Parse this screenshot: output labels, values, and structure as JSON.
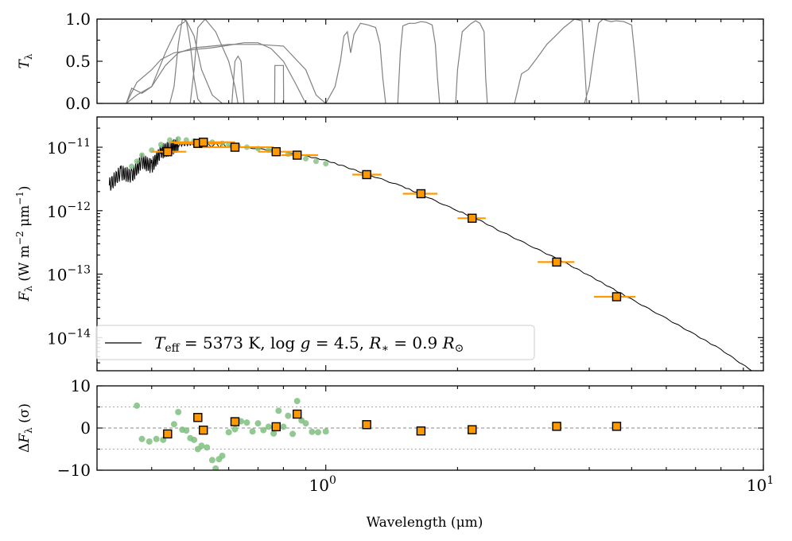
{
  "chart_data": [
    {
      "type": "line",
      "panel": "filter transmission",
      "ylabel_symbol": "T",
      "ylabel_sub": "λ",
      "xscale": "log",
      "xlim": [
        0.3,
        10
      ],
      "ylim": [
        0,
        1
      ],
      "yticks": [
        "0.0",
        "0.5",
        "1.0"
      ],
      "color": "#808080",
      "series": [
        {
          "x": [
            0.35,
            0.36,
            0.38,
            0.4,
            0.43,
            0.46,
            0.48,
            0.5,
            0.52,
            0.55,
            0.58
          ],
          "values": [
            0,
            0.18,
            0.12,
            0.2,
            0.6,
            0.92,
            0.98,
            0.8,
            0.4,
            0.1,
            0
          ]
        },
        {
          "x": [
            0.35,
            0.37,
            0.4,
            0.42,
            0.45,
            0.5,
            0.55,
            0.6,
            0.65,
            0.7,
            0.75,
            0.8,
            0.85,
            0.9
          ],
          "values": [
            0,
            0.25,
            0.4,
            0.52,
            0.6,
            0.64,
            0.66,
            0.69,
            0.72,
            0.72,
            0.65,
            0.5,
            0.25,
            0
          ]
        },
        {
          "x": [
            0.35,
            0.37,
            0.4,
            0.43,
            0.46,
            0.5,
            0.55,
            0.6,
            0.7,
            0.8,
            0.9,
            0.95,
            1.0
          ],
          "values": [
            0,
            0.1,
            0.2,
            0.45,
            0.6,
            0.66,
            0.68,
            0.7,
            0.7,
            0.68,
            0.4,
            0.1,
            0
          ]
        },
        {
          "x": [
            0.44,
            0.45,
            0.46,
            0.47,
            0.48,
            0.49,
            0.5,
            0.51,
            0.52
          ],
          "values": [
            0,
            0.2,
            0.7,
            1.0,
            0.98,
            0.7,
            0.3,
            0.05,
            0
          ]
        },
        {
          "x": [
            0.49,
            0.5,
            0.51,
            0.53,
            0.56,
            0.6,
            0.62,
            0.63
          ],
          "values": [
            0,
            0.4,
            0.9,
            1.0,
            0.85,
            0.5,
            0.2,
            0
          ]
        },
        {
          "x": [
            0.61,
            0.62,
            0.63,
            0.64,
            0.65
          ],
          "values": [
            0,
            0.5,
            0.56,
            0.5,
            0
          ]
        },
        {
          "x": [
            0.764,
            0.765,
            0.8,
            0.8,
            0.801
          ],
          "values": [
            0,
            0.45,
            0.45,
            0.45,
            0
          ]
        },
        {
          "x": [
            1.0,
            1.05,
            1.08,
            1.1,
            1.12,
            1.14,
            1.16,
            1.2,
            1.25,
            1.3,
            1.33,
            1.35,
            1.37
          ],
          "values": [
            0,
            0.2,
            0.5,
            0.8,
            0.85,
            0.6,
            0.82,
            0.95,
            0.93,
            0.9,
            0.7,
            0.3,
            0
          ]
        },
        {
          "x": [
            1.46,
            1.48,
            1.5,
            1.55,
            1.6,
            1.65,
            1.7,
            1.75,
            1.78,
            1.8,
            1.82
          ],
          "values": [
            0,
            0.6,
            0.92,
            0.95,
            0.95,
            0.97,
            0.96,
            0.93,
            0.7,
            0.3,
            0
          ]
        },
        {
          "x": [
            1.98,
            2.0,
            2.05,
            2.1,
            2.15,
            2.2,
            2.25,
            2.3,
            2.32,
            2.34
          ],
          "values": [
            0,
            0.4,
            0.85,
            0.9,
            0.95,
            0.98,
            0.95,
            0.85,
            0.3,
            0
          ]
        },
        {
          "x": [
            2.7,
            2.8,
            2.9,
            3.0,
            3.1,
            3.2,
            3.35,
            3.5,
            3.7,
            3.85,
            3.9,
            3.95
          ],
          "values": [
            0,
            0.35,
            0.4,
            0.5,
            0.6,
            0.7,
            0.8,
            0.9,
            1.0,
            0.98,
            0.5,
            0
          ]
        },
        {
          "x": [
            3.9,
            4.0,
            4.1,
            4.2,
            4.3,
            4.4,
            4.5,
            4.6,
            4.8,
            5.0,
            5.1,
            5.2
          ],
          "values": [
            0,
            0.2,
            0.6,
            0.95,
            1.0,
            0.98,
            0.97,
            0.98,
            0.97,
            0.93,
            0.5,
            0
          ]
        }
      ]
    },
    {
      "type": "scatter",
      "panel": "spectral energy distribution",
      "ylabel_symbol": "F",
      "ylabel_sub": "λ",
      "ylabel_units": "(W m",
      "ylabel_exp1": "−2",
      "ylabel_mid": " μm",
      "ylabel_exp2": "−1",
      "ylabel_close": ")",
      "xscale": "log",
      "yscale": "log",
      "xlim": [
        0.3,
        10
      ],
      "ylim": [
        3e-15,
        3e-11
      ],
      "yticks": [
        {
          "base": "10",
          "exp": "−11"
        },
        {
          "base": "10",
          "exp": "−12"
        },
        {
          "base": "10",
          "exp": "−13"
        },
        {
          "base": "10",
          "exp": "−14"
        }
      ],
      "legend": {
        "position": "lower-left",
        "label": "T_eff = 5373 K, log g = 4.5, R_* = 0.9 R_⊙",
        "parts": {
          "teff_sym": "T",
          "teff_sub": "eff",
          "teff_val": " = 5373 K, log ",
          "g_sym": "g",
          "g_val": " = 4.5, ",
          "r_sym": "R",
          "r_sub": "∗",
          "r_val": " = 0.9 ",
          "rsun_sym": "R",
          "rsun_sub": "⊙"
        }
      },
      "model_line": {
        "color": "#000000",
        "x": [
          0.32,
          0.34,
          0.36,
          0.38,
          0.4,
          0.42,
          0.44,
          0.46,
          0.5,
          0.55,
          0.6,
          0.7,
          0.8,
          0.9,
          1.0,
          1.1,
          1.25,
          1.5,
          1.65,
          2.0,
          2.2,
          2.5,
          3.0,
          3.5,
          4.0,
          4.5,
          5.0,
          6.0,
          7.0,
          8.0,
          9.4
        ],
        "values": [
          2.5e-12,
          4e-12,
          3.5e-12,
          6e-12,
          5e-12,
          8.5e-12,
          9.5e-12,
          1.1e-11,
          1.15e-11,
          1.1e-11,
          1.05e-11,
          9.5e-12,
          8.5e-12,
          7.3e-12,
          6.2e-12,
          5e-12,
          3.7e-12,
          2.4e-12,
          1.8e-12,
          1e-12,
          7.6e-13,
          4.8e-13,
          2.6e-13,
          1.55e-13,
          9.5e-14,
          6e-14,
          4e-14,
          2e-14,
          1.1e-14,
          6.5e-15,
          3e-15
        ]
      },
      "spectrum_points": {
        "color": "#7fbf7f",
        "x": [
          0.36,
          0.37,
          0.38,
          0.4,
          0.42,
          0.44,
          0.46,
          0.48,
          0.5,
          0.52,
          0.55,
          0.58,
          0.6,
          0.63,
          0.66,
          0.7,
          0.74,
          0.78,
          0.82,
          0.86,
          0.9,
          0.95,
          1.0
        ],
        "values": [
          5e-12,
          6e-12,
          7.5e-12,
          9e-12,
          1.1e-11,
          1.3e-11,
          1.35e-11,
          1.3e-11,
          1.25e-11,
          1.22e-11,
          1.2e-11,
          1.15e-11,
          1.1e-11,
          1.05e-11,
          1e-11,
          9.5e-12,
          9e-12,
          8.3e-12,
          7.8e-12,
          7.2e-12,
          6.6e-12,
          6e-12,
          5.5e-12
        ]
      },
      "photometry": {
        "marker_color": "#ff9900",
        "edge_color": "#000000",
        "x": [
          0.435,
          0.51,
          0.525,
          0.62,
          0.77,
          0.86,
          1.24,
          1.65,
          2.16,
          3.37,
          4.62
        ],
        "values": [
          8.5e-12,
          1.15e-11,
          1.2e-11,
          1e-11,
          8.5e-12,
          7.5e-12,
          3.7e-12,
          1.85e-12,
          7.6e-13,
          1.55e-13,
          4.4e-14
        ],
        "xerr_low": [
          0.4,
          0.45,
          0.44,
          0.5,
          0.7,
          0.79,
          1.15,
          1.5,
          2.0,
          3.05,
          4.1
        ],
        "xerr_high": [
          0.48,
          0.58,
          0.62,
          0.76,
          0.87,
          0.96,
          1.34,
          1.8,
          2.32,
          3.7,
          5.1
        ]
      }
    },
    {
      "type": "scatter",
      "panel": "residuals",
      "ylabel_delta": "Δ",
      "ylabel_symbol": "F",
      "ylabel_sub": "λ",
      "ylabel_units": " (σ)",
      "xscale": "log",
      "xlim": [
        0.3,
        10
      ],
      "ylim": [
        -10,
        10
      ],
      "yticks": [
        "−10",
        "0",
        "10"
      ],
      "xlabel": "Wavelength (μm)",
      "xticks": [
        {
          "base": "10",
          "exp": "0",
          "value": 1
        },
        {
          "base": "10",
          "exp": "1",
          "value": 10
        }
      ],
      "reference_lines": [
        0,
        5,
        -5
      ],
      "spectrum_residuals": {
        "color": "#7fbf7f",
        "x": [
          0.37,
          0.38,
          0.395,
          0.41,
          0.425,
          0.435,
          0.45,
          0.46,
          0.47,
          0.48,
          0.49,
          0.5,
          0.51,
          0.52,
          0.535,
          0.55,
          0.56,
          0.57,
          0.58,
          0.6,
          0.62,
          0.64,
          0.66,
          0.68,
          0.7,
          0.72,
          0.74,
          0.76,
          0.78,
          0.8,
          0.82,
          0.84,
          0.86,
          0.88,
          0.9,
          0.93,
          0.96,
          1.0
        ],
        "values": [
          5.3,
          -2.6,
          -3.2,
          -2.6,
          -2.8,
          -1.2,
          0.9,
          3.8,
          -0.4,
          -0.6,
          -2.4,
          -2.8,
          -5,
          -4.2,
          -4.6,
          -7.6,
          -9.6,
          -7.4,
          -6.6,
          -1.0,
          -0.3,
          1.6,
          1.3,
          -0.8,
          1.1,
          -0.5,
          0.3,
          -1.3,
          4.1,
          0.3,
          2.9,
          -1.4,
          6.4,
          1.8,
          1.1,
          -0.9,
          -1.0,
          -0.8
        ]
      },
      "photometry_residuals": {
        "marker_color": "#ff9900",
        "x": [
          0.435,
          0.51,
          0.525,
          0.62,
          0.77,
          0.86,
          1.24,
          1.65,
          2.16,
          3.37,
          4.62
        ],
        "values": [
          -1.4,
          2.5,
          -0.5,
          1.5,
          0.3,
          3.3,
          0.8,
          -0.7,
          -0.4,
          0.4,
          0.4
        ]
      }
    }
  ]
}
